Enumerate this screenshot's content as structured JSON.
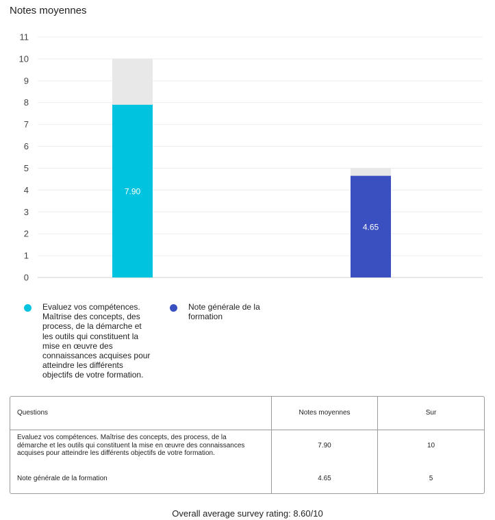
{
  "title": "Notes moyennes",
  "colors": {
    "series1": "#00c3df",
    "series2": "#3a4fc0",
    "max_fill": "#e8e8e8",
    "grid": "#ececec"
  },
  "chart_data": {
    "type": "bar",
    "title": "Notes moyennes",
    "ylim": [
      0,
      11
    ],
    "yticks": [
      0,
      1,
      2,
      3,
      4,
      5,
      6,
      7,
      8,
      9,
      10,
      11
    ],
    "grid": true,
    "legend_position": "bottom",
    "categories": [
      "Evaluez vos compétences. Maîtrise des concepts, des process, de la démarche et les outils qui constituent la mise en œuvre des connaissances acquises pour atteindre les différents objectifs de votre formation.",
      "Note générale de la formation"
    ],
    "values": [
      7.9,
      4.65
    ],
    "value_labels": [
      "7.90",
      "4.65"
    ],
    "max_values": [
      10,
      5
    ]
  },
  "table": {
    "headers": [
      "Questions",
      "Notes moyennes",
      "Sur"
    ],
    "rows": [
      [
        "Evaluez vos compétences. Maîtrise des concepts, des process, de la démarche et les outils qui constituent la mise en œuvre des connaissances acquises pour atteindre les différents objectifs de votre formation.",
        "7.90",
        "10"
      ],
      [
        "Note générale de la formation",
        "4.65",
        "5"
      ]
    ]
  },
  "footer": "Overall average survey rating: 8.60/10"
}
